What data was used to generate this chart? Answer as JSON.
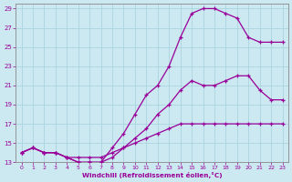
{
  "xlabel": "Windchill (Refroidissement éolien,°C)",
  "bg_color": "#cce8f0",
  "grid_color": "#aad4e0",
  "line_color": "#990099",
  "spine_color": "#888888",
  "xlim": [
    -0.5,
    23.5
  ],
  "ylim": [
    13,
    29.5
  ],
  "xticks": [
    0,
    1,
    2,
    3,
    4,
    5,
    6,
    7,
    8,
    9,
    10,
    11,
    12,
    13,
    14,
    15,
    16,
    17,
    18,
    19,
    20,
    21,
    22,
    23
  ],
  "yticks": [
    13,
    15,
    17,
    19,
    21,
    23,
    25,
    27,
    29
  ],
  "series": [
    {
      "x": [
        0,
        1,
        2,
        3,
        4,
        5,
        6,
        7,
        8,
        9,
        10,
        11,
        12,
        13,
        14,
        15,
        16,
        17,
        18,
        19,
        20,
        21,
        22,
        23
      ],
      "y": [
        14,
        14.5,
        14,
        14,
        13.5,
        13.5,
        13.5,
        13.5,
        14,
        14.5,
        15,
        15.5,
        16,
        16.5,
        17,
        17,
        17,
        17,
        17,
        17,
        17,
        17,
        17,
        17
      ]
    },
    {
      "x": [
        0,
        1,
        2,
        3,
        4,
        5,
        6,
        7,
        8,
        9,
        10,
        11,
        12,
        13,
        14,
        15,
        16,
        17,
        18,
        19,
        20,
        21,
        22,
        23
      ],
      "y": [
        14,
        14.5,
        14,
        14,
        13.5,
        13,
        13,
        13,
        13.5,
        14.5,
        15.5,
        16.5,
        18,
        19,
        20.5,
        21.5,
        21,
        21,
        21.5,
        22,
        22,
        20.5,
        19.5,
        19.5
      ]
    },
    {
      "x": [
        0,
        1,
        2,
        3,
        4,
        5,
        6,
        7,
        8,
        9,
        10,
        11,
        12,
        13,
        14,
        15,
        16,
        17,
        18,
        19,
        20,
        21,
        22,
        23
      ],
      "y": [
        14,
        14.5,
        14,
        14,
        13.5,
        13,
        13,
        13,
        14.5,
        16,
        18,
        20,
        21,
        23,
        26,
        28.5,
        29,
        29,
        28.5,
        28,
        26,
        25.5,
        25.5,
        25.5
      ]
    }
  ]
}
